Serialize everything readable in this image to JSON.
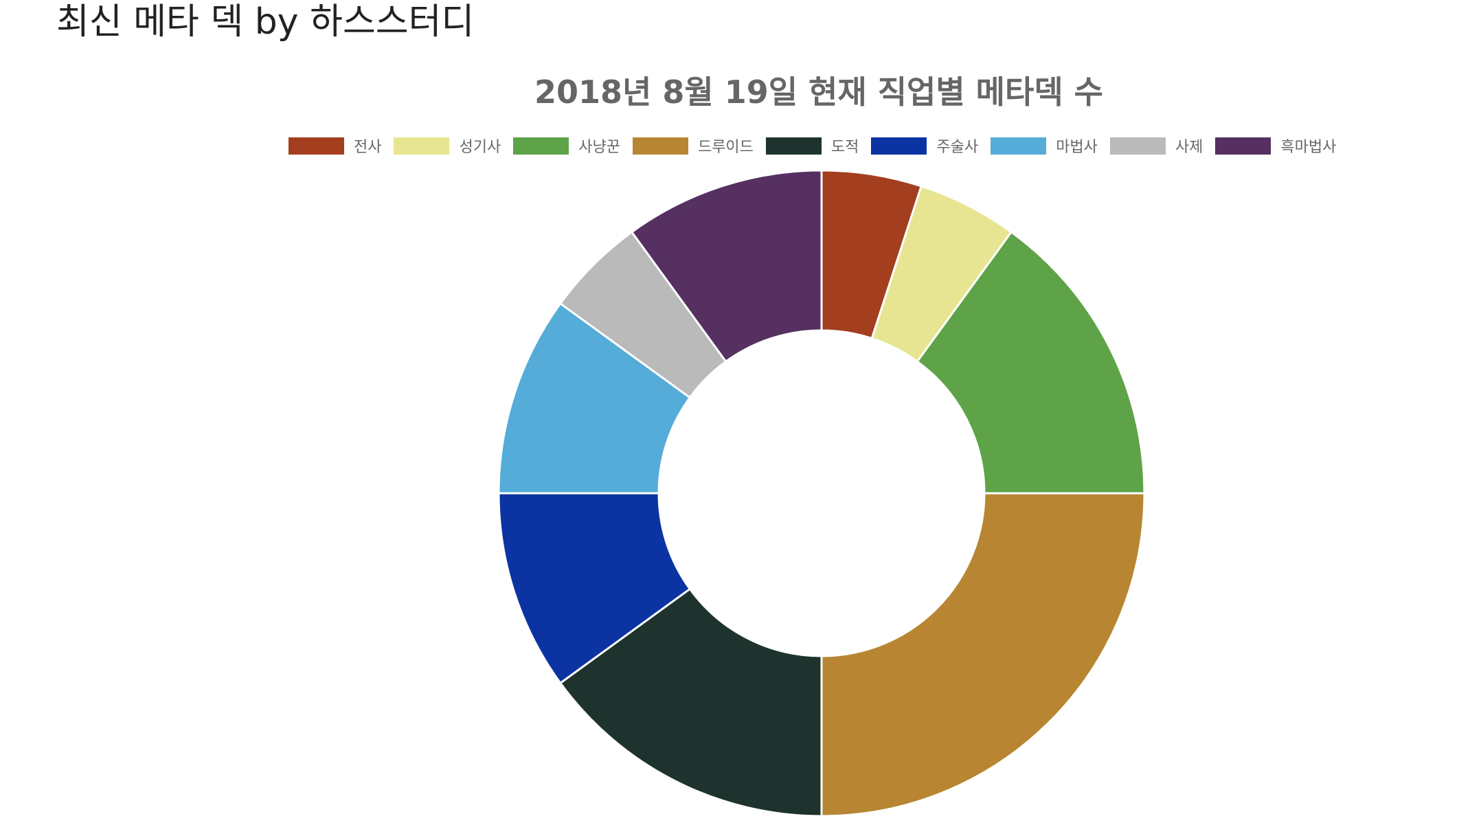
{
  "page": {
    "heading": "최신 메타 덱 by 하스스터디"
  },
  "chart_data": {
    "type": "pie",
    "title": "2018년 8월 19일  현재 직업별 메타덱 수",
    "legend_position": "top",
    "categories": [
      "전사",
      "성기사",
      "사냥꾼",
      "드루이드",
      "도적",
      "주술사",
      "마법사",
      "사제",
      "흑마법사"
    ],
    "values": [
      1,
      1,
      3,
      5,
      3,
      2,
      2,
      1,
      2
    ],
    "colors": [
      "#a33e1e",
      "#e7e591",
      "#5ea347",
      "#b88632",
      "#1e332e",
      "#0b33a2",
      "#55acd8",
      "#bababa",
      "#553061"
    ]
  }
}
